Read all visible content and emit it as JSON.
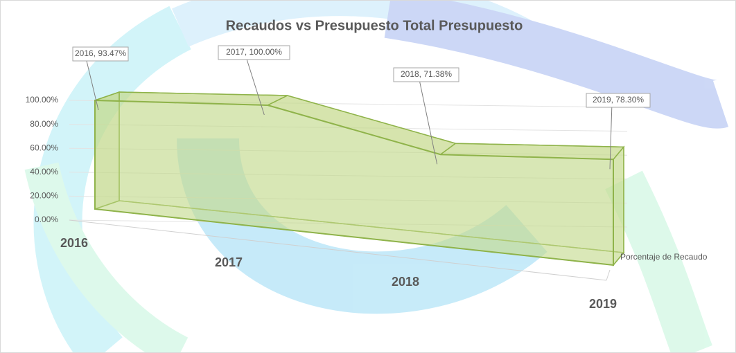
{
  "chart_data": {
    "type": "area",
    "title": "Recaudos vs Presupuesto Total Presupuesto",
    "categories": [
      "2016",
      "2017",
      "2018",
      "2019"
    ],
    "series": [
      {
        "name": "Porcentaje de Recaudo",
        "color": "#c4d98b",
        "values": [
          93.47,
          100,
          71.38,
          78.3
        ],
        "value_labels": [
          "2016, 93.47%",
          "2017, 100.00%",
          "2018, 71.38%",
          "2019, 78.30%"
        ]
      }
    ],
    "ylim": [
      0,
      100
    ],
    "yticks": [
      {
        "value": 0,
        "label": "0.00%"
      },
      {
        "value": 20,
        "label": "20.00%"
      },
      {
        "value": 40,
        "label": "40.00%"
      },
      {
        "value": 60,
        "label": "60.00%"
      },
      {
        "value": 80,
        "label": "80.00%"
      },
      {
        "value": 100,
        "label": "100.00%"
      }
    ],
    "grid": true
  }
}
